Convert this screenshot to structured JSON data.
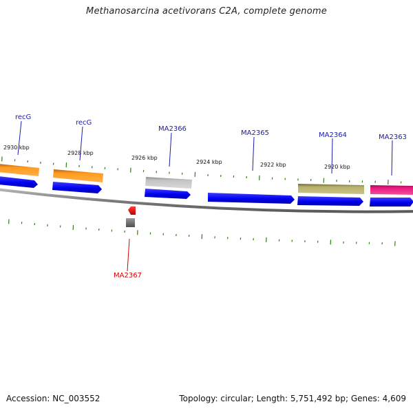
{
  "title": "Methanosarcina acetivorans C2A, complete genome",
  "footer": {
    "accession": "Accession: NC_003552",
    "summary": "Topology: circular; Length: 5,751,492 bp; Genes: 4,609"
  },
  "ruler": {
    "labels": [
      "2930 kbp",
      "2928 kbp",
      "2926 kbp",
      "2924 kbp",
      "2922 kbp",
      "2920 kbp"
    ],
    "tick_color": "#2e7d12"
  },
  "genes": [
    {
      "id": "gene-recg-1",
      "label": "recG",
      "label_color": "#1a1aa6",
      "strand": "forward",
      "arrow_color": "#0000e6",
      "cog_color": "#f5951f"
    },
    {
      "id": "gene-recg-2",
      "label": "recG",
      "label_color": "#1a1aa6",
      "strand": "forward",
      "arrow_color": "#0000e6",
      "cog_color": "#f5951f"
    },
    {
      "id": "gene-ma2366",
      "label": "MA2366",
      "label_color": "#1a1aa6",
      "strand": "forward",
      "arrow_color": "#0000e6",
      "cog_color": "#bdbdbd"
    },
    {
      "id": "gene-ma2365",
      "label": "MA2365",
      "label_color": "#1a1aa6",
      "strand": "forward",
      "arrow_color": "#0000e6",
      "cog_color": ""
    },
    {
      "id": "gene-ma2364",
      "label": "MA2364",
      "label_color": "#1a1aa6",
      "strand": "forward",
      "arrow_color": "#0000e6",
      "cog_color": "#b8b070"
    },
    {
      "id": "gene-ma2363",
      "label": "MA2363",
      "label_color": "#1a1aa6",
      "strand": "forward",
      "arrow_color": "#0000e6",
      "cog_color": "#e6157a"
    },
    {
      "id": "gene-ma2367",
      "label": "MA2367",
      "label_color": "#d40000",
      "strand": "reverse",
      "arrow_color": "#e60000",
      "cog_color": "#6e6e6e"
    }
  ],
  "colors": {
    "backbone": "#8c8c8c",
    "background": "#ffffff"
  }
}
